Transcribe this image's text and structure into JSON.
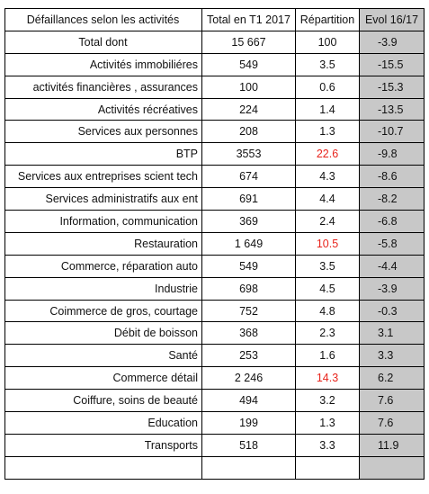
{
  "colors": {
    "evol_bg": "#c8c8c8",
    "highlight": "#e8241c",
    "text": "#111111",
    "border": "#000000"
  },
  "headers": {
    "activity": "Défaillances selon les activités",
    "total": "Total en T1 2017",
    "repartition": "Répartition",
    "evol": "Evol 16/17"
  },
  "rows": [
    {
      "label": "Total dont",
      "total": "15 667",
      "repartition": "100",
      "evol": "-3.9",
      "highlight": false
    },
    {
      "label": "Activités immobiliéres",
      "total": "549",
      "repartition": "3.5",
      "evol": "-15.5",
      "highlight": false
    },
    {
      "label": "activités financières , assurances",
      "total": "100",
      "repartition": "0.6",
      "evol": "-15.3",
      "highlight": false
    },
    {
      "label": "Activités récréatives",
      "total": "224",
      "repartition": "1.4",
      "evol": "-13.5",
      "highlight": false
    },
    {
      "label": "Services aux personnes",
      "total": "208",
      "repartition": "1.3",
      "evol": "-10.7",
      "highlight": false
    },
    {
      "label": "BTP",
      "total": "3553",
      "repartition": "22.6",
      "evol": "-9.8",
      "highlight": true
    },
    {
      "label": "Services aux entreprises scient tech",
      "total": "674",
      "repartition": "4.3",
      "evol": "-8.6",
      "highlight": false
    },
    {
      "label": "Services administratifs aux ent",
      "total": "691",
      "repartition": "4.4",
      "evol": "-8.2",
      "highlight": false
    },
    {
      "label": "Information, communication",
      "total": "369",
      "repartition": "2.4",
      "evol": "-6.8",
      "highlight": false
    },
    {
      "label": "Restauration",
      "total": "1 649",
      "repartition": "10.5",
      "evol": "-5.8",
      "highlight": true
    },
    {
      "label": "Commerce, réparation auto",
      "total": "549",
      "repartition": "3.5",
      "evol": "-4.4",
      "highlight": false
    },
    {
      "label": "Industrie",
      "total": "698",
      "repartition": "4.5",
      "evol": "-3.9",
      "highlight": false
    },
    {
      "label": "Coimmerce de gros, courtage",
      "total": "752",
      "repartition": "4.8",
      "evol": "-0.3",
      "highlight": false
    },
    {
      "label": "Débit de boisson",
      "total": "368",
      "repartition": "2.3",
      "evol": "3.1",
      "highlight": false
    },
    {
      "label": "Santé",
      "total": "253",
      "repartition": "1.6",
      "evol": "3.3",
      "highlight": false
    },
    {
      "label": "Commerce détail",
      "total": "2 246",
      "repartition": "14.3",
      "evol": "6.2",
      "highlight": true
    },
    {
      "label": "Coiffure, soins de beauté",
      "total": "494",
      "repartition": "3.2",
      "evol": "7.6",
      "highlight": false
    },
    {
      "label": "Education",
      "total": "199",
      "repartition": "1.3",
      "evol": "7.6",
      "highlight": false
    },
    {
      "label": "Transports",
      "total": "518",
      "repartition": "3.3",
      "evol": "11.9",
      "highlight": false
    },
    {
      "label": "",
      "total": "",
      "repartition": "",
      "evol": "",
      "highlight": false
    }
  ]
}
